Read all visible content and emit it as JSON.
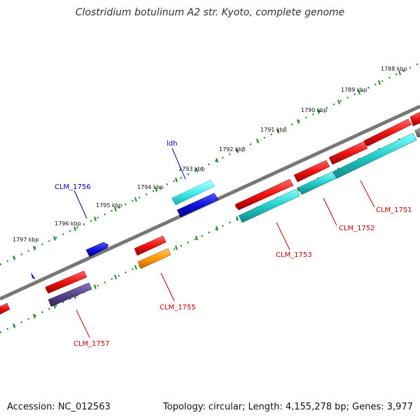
{
  "title": "Clostridium botulinum A2 str. Kyoto, complete genome",
  "footer": {
    "accession": "Accession: NC_012563",
    "summary": "Topology: circular; Length: 4,155,278 bp; Genes: 3,977"
  },
  "ticks": [
    {
      "label": "1788 kbp"
    },
    {
      "label": "1789 kbp"
    },
    {
      "label": "1790 kbp"
    },
    {
      "label": "1791 kbp"
    },
    {
      "label": "1792 kbp"
    },
    {
      "label": "1793 kbp"
    },
    {
      "label": "1794 kbp"
    },
    {
      "label": "1795 kbp"
    },
    {
      "label": "1796 kbp"
    },
    {
      "label": "1797 kbp"
    }
  ],
  "genes": [
    {
      "name": "CLM_1751",
      "color": "#cc0000"
    },
    {
      "name": "CLM_1752",
      "color": "#cc0000"
    },
    {
      "name": "CLM_1753",
      "color": "#cc0000"
    },
    {
      "name": "CLM_1755",
      "color": "#cc0000"
    },
    {
      "name": "CLM_1757",
      "color": "#cc0000"
    },
    {
      "name": "CLM_1756",
      "color": "#0000cc"
    },
    {
      "name": "ldh",
      "color": "#0000cc"
    }
  ],
  "colors": {
    "backbone": "#808080",
    "tick_dots": "#1a8a1a",
    "cds": "#ee1111",
    "gene_cyan": "#22cccc",
    "gene_blue": "#1111dd",
    "gene_orange": "#ff9900",
    "gene_purple": "#55448a"
  }
}
